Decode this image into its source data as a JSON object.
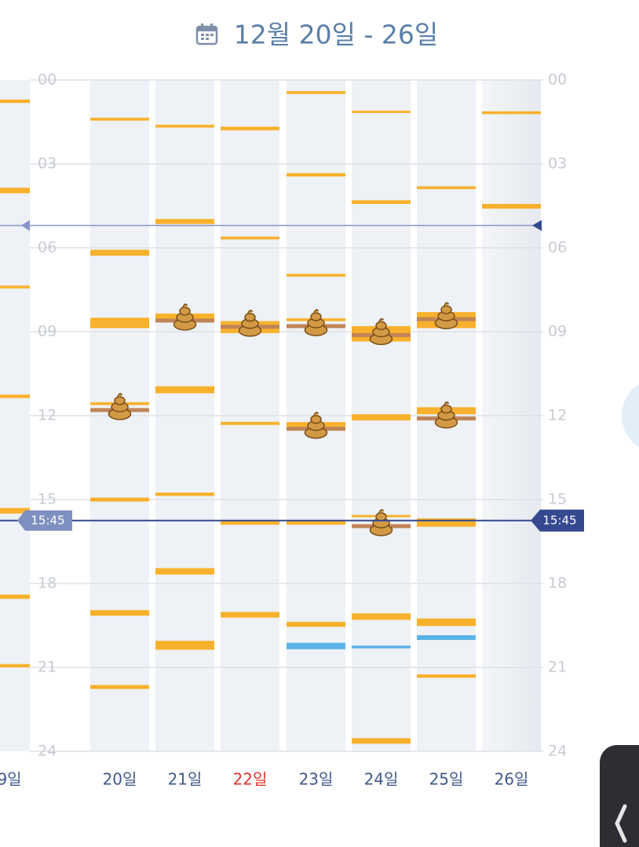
{
  "header": {
    "title": "12월 20일 - 26일"
  },
  "axis": {
    "range": [
      0,
      24
    ],
    "ticks": [
      {
        "value": 0,
        "label": "00"
      },
      {
        "value": 3,
        "label": "03"
      },
      {
        "value": 6,
        "label": "06"
      },
      {
        "value": 9,
        "label": "09"
      },
      {
        "value": 12,
        "label": "12"
      },
      {
        "value": 15,
        "label": "15"
      },
      {
        "value": 18,
        "label": "18"
      },
      {
        "value": 21,
        "label": "21"
      },
      {
        "value": 24,
        "label": "24"
      }
    ]
  },
  "now": {
    "value": 15.75,
    "label": "15:45"
  },
  "reference_line": 5.2,
  "colors": {
    "feeds": "#f8b12c",
    "others": "#5cb3e6",
    "poops": "#c08457",
    "day_label": "#3f5a8a",
    "holiday_label": "#e0332c",
    "now": "#34498f",
    "reference": "#8a94cc"
  },
  "days": [
    {
      "label": "9일",
      "feeds": [
        [
          0.7,
          0.82
        ],
        [
          3.85,
          4.05
        ],
        [
          7.35,
          7.45
        ],
        [
          11.25,
          11.37
        ],
        [
          15.3,
          15.5
        ],
        [
          18.4,
          18.55
        ],
        [
          20.88,
          21.0
        ]
      ],
      "others": [],
      "poops": []
    },
    {
      "label": "20일",
      "feeds": [
        [
          1.35,
          1.45
        ],
        [
          6.07,
          6.28
        ],
        [
          8.5,
          8.87
        ],
        [
          11.52,
          11.62
        ],
        [
          14.93,
          15.07
        ],
        [
          18.95,
          19.15
        ],
        [
          21.63,
          21.77
        ]
      ],
      "others": [],
      "poops": [
        11.8
      ]
    },
    {
      "label": "21일",
      "feeds": [
        [
          1.6,
          1.7
        ],
        [
          4.97,
          5.15
        ],
        [
          8.35,
          8.6
        ],
        [
          10.95,
          11.2
        ],
        [
          14.75,
          14.87
        ],
        [
          17.45,
          17.68
        ],
        [
          20.05,
          20.37
        ]
      ],
      "others": [],
      "poops": [
        8.6
      ]
    },
    {
      "label": "22일",
      "holiday": true,
      "feeds": [
        [
          1.67,
          1.8
        ],
        [
          5.6,
          5.7
        ],
        [
          8.62,
          9.05
        ],
        [
          12.22,
          12.33
        ],
        [
          15.77,
          15.9
        ],
        [
          19.02,
          19.22
        ]
      ],
      "others": [],
      "poops": [
        8.82
      ]
    },
    {
      "label": "23일",
      "feeds": [
        [
          0.4,
          0.5
        ],
        [
          3.33,
          3.45
        ],
        [
          6.93,
          7.03
        ],
        [
          8.52,
          8.62
        ],
        [
          12.23,
          12.53
        ],
        [
          15.77,
          15.9
        ],
        [
          19.37,
          19.55
        ]
      ],
      "others": [
        [
          20.12,
          20.35
        ]
      ],
      "poops": [
        8.8,
        12.47
      ]
    },
    {
      "label": "24일",
      "feeds": [
        [
          1.1,
          1.18
        ],
        [
          4.3,
          4.43
        ],
        [
          8.8,
          9.35
        ],
        [
          11.95,
          12.17
        ],
        [
          15.55,
          15.63
        ],
        [
          19.07,
          19.3
        ],
        [
          23.53,
          23.73
        ]
      ],
      "others": [
        [
          20.22,
          20.32
        ]
      ],
      "poops": [
        9.12,
        15.95
      ]
    },
    {
      "label": "25일",
      "feeds": [
        [
          3.8,
          3.9
        ],
        [
          8.3,
          8.87
        ],
        [
          11.7,
          11.95
        ],
        [
          15.67,
          15.97
        ],
        [
          19.25,
          19.52
        ],
        [
          21.25,
          21.37
        ]
      ],
      "others": [
        [
          19.85,
          20.02
        ]
      ],
      "poops": [
        8.55,
        12.1
      ]
    },
    {
      "label": "26일",
      "feeds": [
        [
          1.12,
          1.22
        ],
        [
          4.43,
          4.6
        ]
      ],
      "others": [],
      "poops": []
    }
  ]
}
